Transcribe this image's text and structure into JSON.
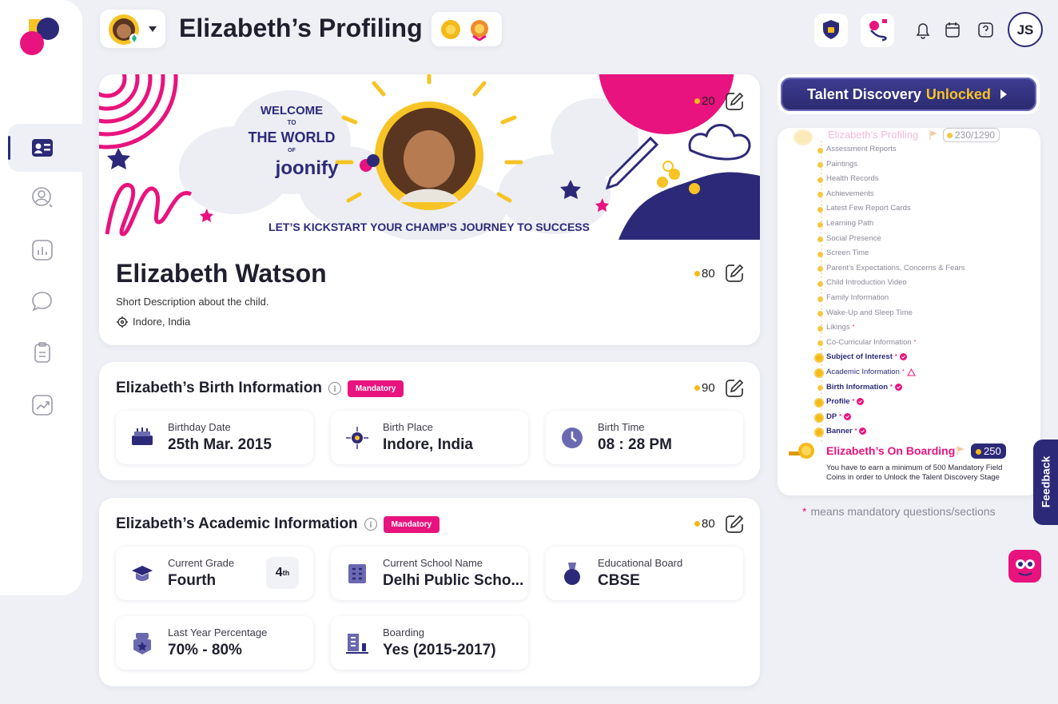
{
  "header": {
    "title": "Elizabeth’s Profiling"
  },
  "top_bar": {
    "user_initials": "JS"
  },
  "banner": {
    "welcome": "WELCOME",
    "to": "TO",
    "world": "THE WORLD",
    "of": "OF",
    "brand": "joonify",
    "tagline": "LET’S KICKSTART YOUR CHAMP’S JOURNEY TO SUCCESS",
    "coins": 20
  },
  "profile": {
    "name": "Elizabeth Watson",
    "description": "Short Description about the child.",
    "location": "Indore, India",
    "coins": 80
  },
  "birth_info": {
    "title": "Elizabeth’s Birth Information",
    "badge": "Mandatory",
    "coins": 90,
    "fields": [
      {
        "label": "Birthday Date",
        "value": "25th Mar. 2015"
      },
      {
        "label": "Birth Place",
        "value": "Indore, India"
      },
      {
        "label": "Birth Time",
        "value": "08 : 28 PM"
      }
    ]
  },
  "academic_info": {
    "title": "Elizabeth’s Academic Information",
    "badge": "Mandatory",
    "coins": 80,
    "fields": [
      {
        "label": "Current Grade",
        "value": "Fourth",
        "badge_number": "4",
        "badge_suffix": "th"
      },
      {
        "label": "Current School Name",
        "value": "Delhi Public Scho..."
      },
      {
        "label": "Educational Board",
        "value": "CBSE"
      },
      {
        "label": "Last Year Percentage",
        "value": "70% - 80%"
      },
      {
        "label": "Boarding",
        "value": "Yes (2015-2017)"
      }
    ]
  },
  "talent_button": {
    "text": "Talent Discovery",
    "highlight": "Unlocked"
  },
  "progress": {
    "title": "Elizabeth’s Profiling",
    "score": "230/1290",
    "items": [
      {
        "label": "Assessment Reports",
        "status": "pending"
      },
      {
        "label": "Paintings",
        "status": "pending"
      },
      {
        "label": "Health Records",
        "status": "pending"
      },
      {
        "label": "Achievements",
        "status": "pending"
      },
      {
        "label": "Latest Few Report Cards",
        "status": "pending"
      },
      {
        "label": "Learning Path",
        "status": "pending"
      },
      {
        "label": "Social Presence",
        "status": "pending"
      },
      {
        "label": "Screen Time",
        "status": "pending"
      },
      {
        "label": "Parent’s Expectations, Concerns & Fears",
        "status": "pending"
      },
      {
        "label": "Child Introduction Video",
        "status": "pending"
      },
      {
        "label": "Family Information",
        "status": "pending"
      },
      {
        "label": "Wake-Up and Sleep Time",
        "status": "pending"
      },
      {
        "label": "Likings",
        "asterisk": "*",
        "status": "pending"
      },
      {
        "label": "Co-Curricular Information",
        "asterisk": "*",
        "status": "pending"
      },
      {
        "label": "Subject of Interest",
        "asterisk": "*",
        "status": "done"
      },
      {
        "label": "Academic Information",
        "asterisk": "*",
        "status": "warning"
      },
      {
        "label": "Birth Information",
        "asterisk": "*",
        "status": "done-dot"
      },
      {
        "label": "Profile",
        "asterisk": "*",
        "status": "done"
      },
      {
        "label": "DP",
        "asterisk": "*",
        "status": "done"
      },
      {
        "label": "Banner",
        "asterisk": "*",
        "status": "done"
      }
    ]
  },
  "onboarding": {
    "title": "Elizabeth’s On Boarding",
    "coins": 250,
    "note": "You have to earn a minimum of 500 Mandatory Field Coins in order to Unlock the Talent Discovery Stage"
  },
  "footnote": {
    "star": "*",
    "text": "means mandatory questions/sections"
  },
  "feedback": {
    "label": "Feedback"
  }
}
